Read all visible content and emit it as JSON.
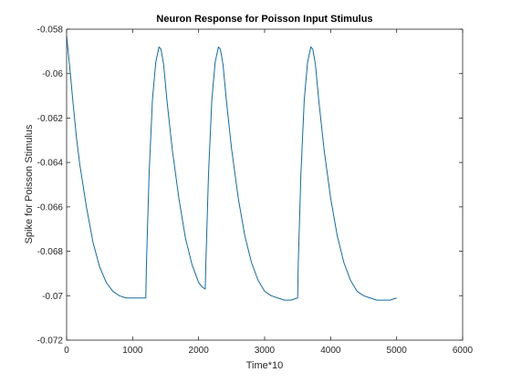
{
  "chart_data": {
    "type": "line",
    "title": "Neuron Response for Poisson Input Stimulus",
    "xlabel": "Time*10",
    "ylabel": "Spike for Poisson Stimulus",
    "xlim": [
      0,
      6000
    ],
    "ylim": [
      -0.072,
      -0.058
    ],
    "xticks": [
      0,
      1000,
      2000,
      3000,
      4000,
      5000,
      6000
    ],
    "xtick_labels": [
      "0",
      "1000",
      "2000",
      "3000",
      "4000",
      "5000",
      "6000"
    ],
    "yticks": [
      -0.072,
      -0.07,
      -0.068,
      -0.066,
      -0.064,
      -0.062,
      -0.06,
      -0.058
    ],
    "ytick_labels": [
      "-0.072",
      "-0.07",
      "-0.068",
      "-0.066",
      "-0.064",
      "-0.062",
      "-0.06",
      "-0.058"
    ],
    "grid": false,
    "legend": "none",
    "line_color": "#0072bd",
    "series": [
      {
        "x": [
          0,
          50,
          100,
          150,
          200,
          300,
          400,
          500,
          600,
          700,
          800,
          900,
          1000,
          1100,
          1200,
          1210,
          1250,
          1300,
          1350,
          1400,
          1430,
          1470,
          1520,
          1600,
          1700,
          1800,
          1900,
          2000,
          2050,
          2100,
          2110,
          2150,
          2200,
          2250,
          2300,
          2330,
          2370,
          2420,
          2500,
          2600,
          2700,
          2800,
          2900,
          3000,
          3100,
          3200,
          3300,
          3400,
          3500,
          3510,
          3550,
          3600,
          3650,
          3700,
          3730,
          3770,
          3820,
          3900,
          4000,
          4100,
          4200,
          4300,
          4400,
          4500,
          4600,
          4700,
          4800,
          4900,
          5000
        ],
        "y": [
          -0.0583,
          -0.0598,
          -0.0614,
          -0.0629,
          -0.0641,
          -0.066,
          -0.0676,
          -0.0687,
          -0.0694,
          -0.0698,
          -0.07,
          -0.0701,
          -0.0701,
          -0.0701,
          -0.0701,
          -0.0685,
          -0.0645,
          -0.0612,
          -0.0595,
          -0.0588,
          -0.0589,
          -0.0596,
          -0.0612,
          -0.0634,
          -0.0656,
          -0.0674,
          -0.0686,
          -0.0694,
          -0.0696,
          -0.0697,
          -0.0685,
          -0.0645,
          -0.0612,
          -0.0595,
          -0.0588,
          -0.0589,
          -0.0596,
          -0.0612,
          -0.0634,
          -0.0656,
          -0.0673,
          -0.0685,
          -0.0693,
          -0.0698,
          -0.07,
          -0.0701,
          -0.0702,
          -0.0702,
          -0.0701,
          -0.0685,
          -0.0645,
          -0.0612,
          -0.0595,
          -0.0588,
          -0.0589,
          -0.0596,
          -0.0612,
          -0.0634,
          -0.0656,
          -0.0673,
          -0.0685,
          -0.0693,
          -0.0698,
          -0.07,
          -0.0701,
          -0.0702,
          -0.0702,
          -0.0702,
          -0.0701
        ]
      }
    ]
  }
}
